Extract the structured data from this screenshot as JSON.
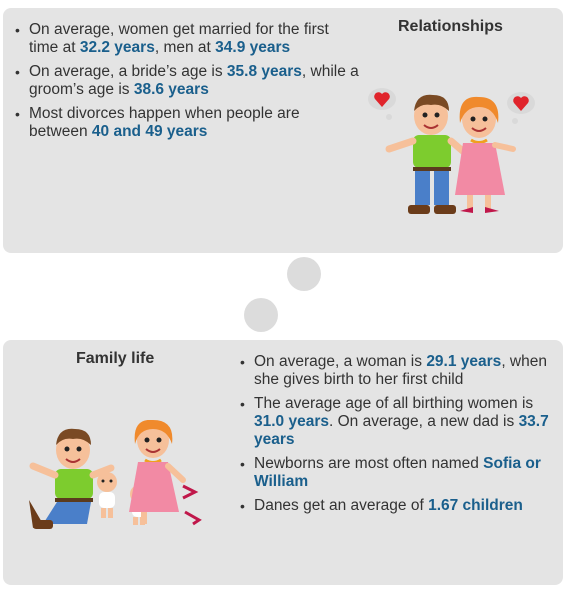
{
  "relationships": {
    "title": "Relationships",
    "facts": [
      {
        "before": "On average, women get married for the first time at ",
        "hl1": "32.2 years",
        "middle": ", men at ",
        "hl2": "34.9 years",
        "after": ""
      },
      {
        "before": "On average, a bride’s age is ",
        "hl1": "35.8 years",
        "middle": ", while a groom’s age is ",
        "hl2": "38.6 years",
        "after": ""
      },
      {
        "before": "Most divorces happen when people are between ",
        "hl1": "40 and 49 years",
        "middle": "",
        "hl2": "",
        "after": ""
      }
    ]
  },
  "family": {
    "title": "Family life",
    "facts": [
      {
        "before": "On average, a woman is ",
        "hl1": "29.1 years",
        "middle": ", when she gives birth to her first child",
        "hl2": "",
        "after": ""
      },
      {
        "before": "The average age of all birthing women is ",
        "hl1": "31.0 years",
        "middle": ". On average, a new dad is ",
        "hl2": "33.7 years",
        "after": ""
      },
      {
        "before": "Newborns are most often named ",
        "hl1": "Sofia or William",
        "middle": "",
        "hl2": "",
        "after": ""
      },
      {
        "before": "Danes get an average of ",
        "hl1": "1.67 children",
        "middle": "",
        "hl2": "",
        "after": ""
      }
    ]
  },
  "colors": {
    "panel": "#e4e4e4",
    "highlight": "#1a5f8c",
    "text": "#333333",
    "connector_bubble": "#dcdcdc"
  },
  "icons": [
    "couple-illustration",
    "family-illustration",
    "heart-thought-bubble-icon"
  ]
}
